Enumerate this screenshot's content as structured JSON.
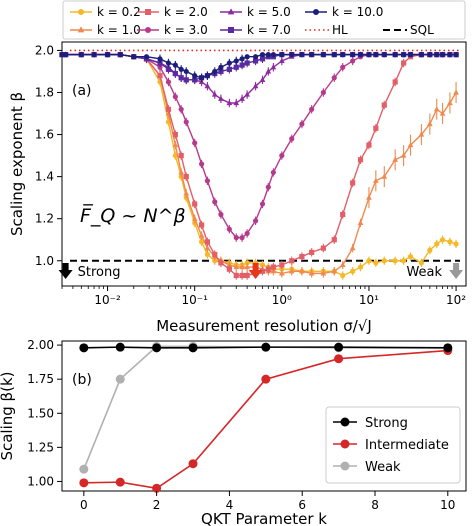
{
  "chart_data": [
    {
      "panel": "(a)",
      "type": "line",
      "xlabel": "Measurement resolution σ/√J",
      "ylabel": "Scaling exponent β",
      "xscale": "log",
      "xlim": [
        0.003,
        130
      ],
      "ylim": [
        0.88,
        2.04
      ],
      "xticks": [
        {
          "value": 0.01,
          "label": "10⁻²"
        },
        {
          "value": 0.1,
          "label": "10⁻¹"
        },
        {
          "value": 1,
          "label": "10⁰"
        },
        {
          "value": 10,
          "label": "10¹"
        },
        {
          "value": 100,
          "label": "10²"
        }
      ],
      "yticks": [
        1.0,
        1.2,
        1.4,
        1.6,
        1.8,
        2.0
      ],
      "formula": "F̅_Q ~ N^β",
      "grid": false,
      "legend_position": "top (above plot)",
      "annotations": [
        {
          "text": "Strong",
          "arrow_color": "#000000",
          "x_value": 0.0033
        },
        {
          "text": "Weak",
          "arrow_color": "#999999",
          "x_value": 100
        },
        {
          "text": "",
          "arrow_color": "#e8361c",
          "x_value": 0.5
        }
      ],
      "reference_lines": [
        {
          "name": "HL",
          "y": 2.0,
          "color": "#e8271d",
          "style": "dotted"
        },
        {
          "name": "SQL",
          "y": 1.0,
          "color": "#000000",
          "style": "dashed"
        }
      ],
      "x": [
        0.003,
        0.0033,
        0.005,
        0.007,
        0.01,
        0.014,
        0.02,
        0.028,
        0.04,
        0.05,
        0.06,
        0.07,
        0.08,
        0.1,
        0.12,
        0.14,
        0.17,
        0.2,
        0.25,
        0.3,
        0.35,
        0.4,
        0.5,
        0.6,
        0.7,
        0.8,
        1.0,
        1.3,
        1.7,
        2.2,
        3.0,
        4.0,
        5.0,
        6.5,
        8.0,
        10,
        12,
        15,
        20,
        25,
        30,
        40,
        50,
        60,
        70,
        85,
        100
      ],
      "series": [
        {
          "name": "k = 0.2",
          "color": "#f6b825",
          "marker": "circle",
          "values": [
            1.98,
            1.98,
            1.98,
            1.98,
            1.98,
            1.98,
            1.97,
            1.96,
            1.85,
            1.66,
            1.5,
            1.4,
            1.3,
            1.18,
            1.09,
            1.03,
            1.0,
            1.0,
            0.99,
            0.98,
            0.98,
            0.99,
            0.99,
            0.98,
            0.97,
            0.96,
            0.96,
            0.96,
            0.95,
            0.95,
            0.95,
            0.95,
            0.93,
            0.95,
            0.97,
            1.0,
            0.99,
            1.0,
            1.0,
            1.0,
            1.02,
            0.99,
            1.05,
            1.08,
            1.1,
            1.09,
            1.08
          ]
        },
        {
          "name": "k = 1.0",
          "color": "#f0894f",
          "marker": "triangle-up",
          "values": [
            1.98,
            1.98,
            1.98,
            1.98,
            1.98,
            1.98,
            1.97,
            1.96,
            1.88,
            1.7,
            1.55,
            1.42,
            1.32,
            1.2,
            1.12,
            1.06,
            1.02,
            1.0,
            0.98,
            0.97,
            0.97,
            0.97,
            0.97,
            0.96,
            0.95,
            0.95,
            0.94,
            0.95,
            0.95,
            0.94,
            0.94,
            0.95,
            0.98,
            1.06,
            1.18,
            1.3,
            1.38,
            1.4,
            1.48,
            1.5,
            1.55,
            1.6,
            1.65,
            1.72,
            1.7,
            1.75,
            1.8
          ]
        },
        {
          "name": "k = 2.0",
          "color": "#e35f67",
          "marker": "square",
          "values": [
            1.98,
            1.98,
            1.98,
            1.98,
            1.98,
            1.98,
            1.97,
            1.96,
            1.88,
            1.72,
            1.6,
            1.5,
            1.4,
            1.27,
            1.17,
            1.09,
            1.03,
            0.99,
            0.96,
            0.93,
            0.93,
            0.93,
            0.94,
            0.95,
            0.96,
            0.97,
            0.98,
            1.0,
            1.02,
            1.04,
            1.06,
            1.1,
            1.22,
            1.37,
            1.48,
            1.55,
            1.63,
            1.74,
            1.85,
            1.94,
            1.97,
            1.98,
            1.98,
            1.98,
            1.98,
            1.98,
            1.98
          ]
        },
        {
          "name": "k = 3.0",
          "color": "#b53a8e",
          "marker": "circle",
          "values": [
            1.98,
            1.98,
            1.98,
            1.98,
            1.98,
            1.98,
            1.97,
            1.96,
            1.92,
            1.85,
            1.78,
            1.72,
            1.66,
            1.56,
            1.46,
            1.38,
            1.28,
            1.22,
            1.15,
            1.11,
            1.11,
            1.13,
            1.19,
            1.27,
            1.35,
            1.42,
            1.5,
            1.58,
            1.65,
            1.72,
            1.8,
            1.87,
            1.92,
            1.95,
            1.97,
            1.98,
            1.98,
            1.98,
            1.98,
            1.98,
            1.98,
            1.98,
            1.98,
            1.98,
            1.98,
            1.98,
            1.98
          ]
        },
        {
          "name": "k = 5.0",
          "color": "#8e2a9f",
          "marker": "triangle-up",
          "values": [
            1.98,
            1.98,
            1.98,
            1.98,
            1.98,
            1.98,
            1.97,
            1.96,
            1.94,
            1.92,
            1.89,
            1.87,
            1.86,
            1.86,
            1.85,
            1.83,
            1.79,
            1.77,
            1.75,
            1.75,
            1.77,
            1.79,
            1.83,
            1.86,
            1.9,
            1.92,
            1.95,
            1.97,
            1.98,
            1.98,
            1.98,
            1.98,
            1.98,
            1.98,
            1.98,
            1.98,
            1.98,
            1.98,
            1.98,
            1.98,
            1.98,
            1.98,
            1.98,
            1.98,
            1.98,
            1.98,
            1.98
          ]
        },
        {
          "name": "k = 7.0",
          "color": "#5b2aa0",
          "marker": "square",
          "values": [
            1.98,
            1.98,
            1.98,
            1.98,
            1.98,
            1.98,
            1.97,
            1.96,
            1.94,
            1.91,
            1.89,
            1.87,
            1.86,
            1.86,
            1.87,
            1.88,
            1.89,
            1.9,
            1.91,
            1.92,
            1.93,
            1.94,
            1.95,
            1.96,
            1.97,
            1.97,
            1.98,
            1.98,
            1.98,
            1.98,
            1.98,
            1.98,
            1.98,
            1.98,
            1.98,
            1.98,
            1.98,
            1.98,
            1.98,
            1.98,
            1.98,
            1.98,
            1.98,
            1.98,
            1.98,
            1.98,
            1.98
          ]
        },
        {
          "name": "k = 10.0",
          "color": "#1c1f7a",
          "marker": "circle",
          "values": [
            1.98,
            1.98,
            1.98,
            1.98,
            1.98,
            1.98,
            1.97,
            1.97,
            1.96,
            1.94,
            1.93,
            1.91,
            1.9,
            1.88,
            1.87,
            1.88,
            1.9,
            1.92,
            1.94,
            1.95,
            1.96,
            1.97,
            1.97,
            1.98,
            1.98,
            1.98,
            1.98,
            1.98,
            1.98,
            1.98,
            1.98,
            1.98,
            1.98,
            1.98,
            1.98,
            1.98,
            1.98,
            1.98,
            1.98,
            1.98,
            1.98,
            1.98,
            1.98,
            1.98,
            1.98,
            1.98,
            1.98
          ]
        }
      ],
      "legend": [
        {
          "label": "k = 0.2"
        },
        {
          "label": "k = 2.0"
        },
        {
          "label": "k = 5.0"
        },
        {
          "label": "k = 10.0"
        },
        {
          "label": "k = 1.0"
        },
        {
          "label": "k = 3.0"
        },
        {
          "label": "k = 7.0"
        },
        {
          "label": "HL"
        },
        {
          "label": "SQL"
        }
      ]
    },
    {
      "panel": "(b)",
      "type": "line",
      "xlabel": "QKT Parameter k",
      "ylabel": "Scaling β(k)",
      "xlim": [
        -0.6,
        10.5
      ],
      "ylim": [
        0.93,
        2.03
      ],
      "xticks": [
        0,
        2,
        4,
        6,
        8,
        10
      ],
      "yticks": [
        {
          "value": 1.0,
          "label": "1.00"
        },
        {
          "value": 1.25,
          "label": "1.25"
        },
        {
          "value": 1.5,
          "label": "1.50"
        },
        {
          "value": 1.75,
          "label": "1.75"
        },
        {
          "value": 2.0,
          "label": "2.00"
        }
      ],
      "grid": false,
      "legend_position": "lower right",
      "x": [
        0,
        1,
        2,
        3,
        5,
        7,
        10
      ],
      "series": [
        {
          "name": "Strong",
          "color": "#000000",
          "values": [
            1.98,
            1.985,
            1.98,
            1.98,
            1.985,
            1.985,
            1.98
          ]
        },
        {
          "name": "Intermediate",
          "color": "#d62728",
          "values": [
            0.99,
            0.995,
            0.95,
            1.13,
            1.75,
            1.9,
            1.96
          ]
        },
        {
          "name": "Weak",
          "color": "#b0b0b0",
          "values": [
            1.09,
            1.75,
            1.99,
            1.99,
            1.985,
            1.98,
            1.98
          ]
        }
      ]
    }
  ]
}
